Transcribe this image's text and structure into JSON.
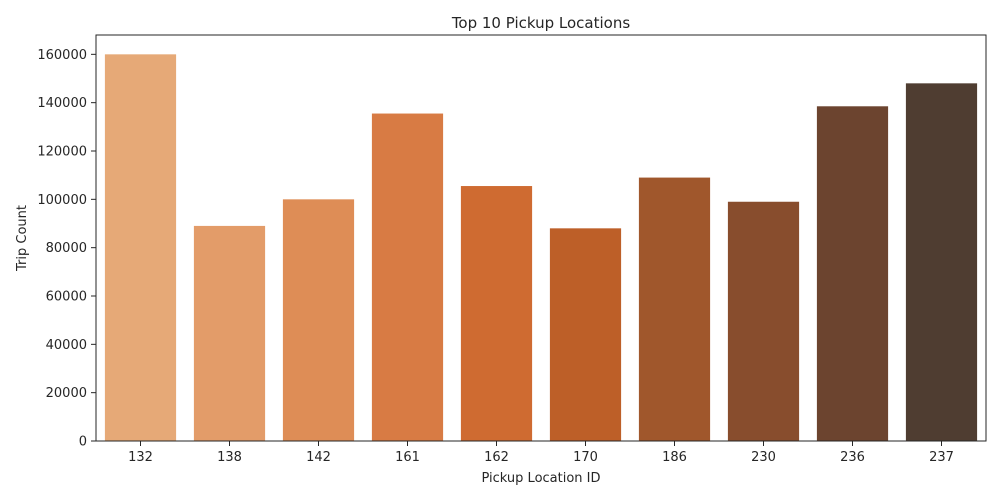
{
  "chart_data": {
    "type": "bar",
    "title": "Top 10 Pickup Locations",
    "xlabel": "Pickup Location ID",
    "ylabel": "Trip Count",
    "categories": [
      "132",
      "138",
      "142",
      "161",
      "162",
      "170",
      "186",
      "230",
      "236",
      "237"
    ],
    "values": [
      160000,
      89000,
      100000,
      135500,
      105500,
      88000,
      109000,
      99000,
      138500,
      148000
    ],
    "colors": [
      "#e6a977",
      "#e39c69",
      "#de8d56",
      "#d87b44",
      "#cf6b31",
      "#bd5f28",
      "#a0572c",
      "#884d2d",
      "#6c442f",
      "#4f3d31"
    ],
    "yticks": [
      0,
      20000,
      40000,
      60000,
      80000,
      100000,
      120000,
      140000,
      160000
    ],
    "ylim": [
      0,
      168000
    ],
    "grid": false,
    "legend": "none"
  }
}
